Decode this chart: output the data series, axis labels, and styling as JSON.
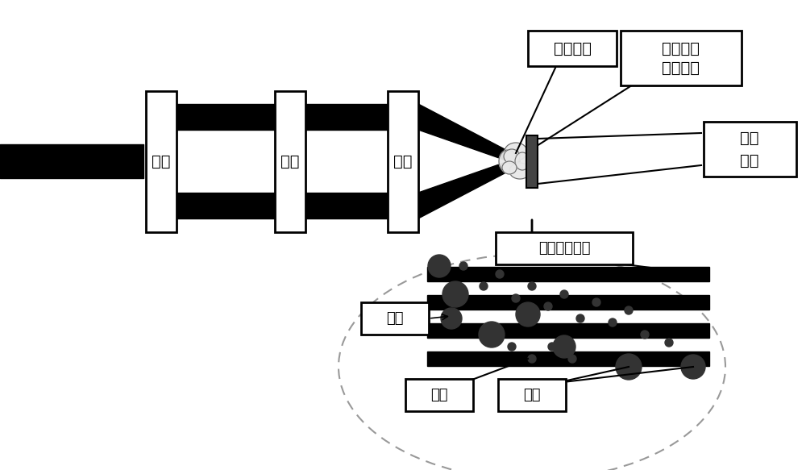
{
  "bg_color": "#ffffff",
  "label_fen_shu": "分束",
  "label_tong_bu": "同步",
  "label_ju_jiao": "聚焦",
  "label_fuzhu_qiti": "辅助气体",
  "label_yindao_line1": "诱导击穿",
  "label_yindao_line2": "等离子体",
  "label_sample_line1": "待测",
  "label_sample_line2": "样品",
  "label_plasma_grating": "等离子体光杼",
  "label_electron": "电子",
  "label_ion": "离子",
  "label_molecule": "分子",
  "figw": 10.0,
  "figh": 5.83,
  "dpi": 100
}
